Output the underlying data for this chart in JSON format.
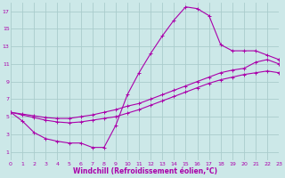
{
  "xlabel": "Windchill (Refroidissement éolien,°C)",
  "bg_color": "#cce8e8",
  "grid_color": "#aacccc",
  "line_color": "#aa00aa",
  "xlim": [
    0,
    23
  ],
  "ylim": [
    0,
    18
  ],
  "xticks": [
    0,
    1,
    2,
    3,
    4,
    5,
    6,
    7,
    8,
    9,
    10,
    11,
    12,
    13,
    14,
    15,
    16,
    17,
    18,
    19,
    20,
    21,
    22,
    23
  ],
  "yticks": [
    1,
    3,
    5,
    7,
    9,
    11,
    13,
    15,
    17
  ],
  "curve1_x": [
    0,
    1,
    2,
    3,
    4,
    5,
    6,
    7,
    8,
    9,
    10,
    11,
    12,
    13,
    14,
    15,
    16,
    17,
    18,
    19,
    20,
    21,
    22,
    23
  ],
  "curve1_y": [
    5.5,
    4.5,
    3.2,
    2.5,
    2.2,
    2.0,
    2.0,
    1.5,
    1.5,
    4.0,
    7.5,
    10.0,
    12.2,
    14.2,
    16.0,
    17.5,
    17.3,
    16.5,
    13.2,
    12.5,
    12.5,
    12.5,
    12.0,
    11.5
  ],
  "curve2_x": [
    0,
    1,
    2,
    3,
    4,
    5,
    6,
    7,
    8,
    9,
    10,
    11,
    12,
    13,
    14,
    15,
    16,
    17,
    18,
    19,
    20,
    21,
    22,
    23
  ],
  "curve2_y": [
    5.5,
    5.3,
    5.1,
    4.9,
    4.8,
    4.8,
    5.0,
    5.2,
    5.5,
    5.8,
    6.2,
    6.5,
    7.0,
    7.5,
    8.0,
    8.5,
    9.0,
    9.5,
    10.0,
    10.3,
    10.5,
    11.2,
    11.5,
    11.0
  ],
  "curve3_x": [
    0,
    1,
    2,
    3,
    4,
    5,
    6,
    7,
    8,
    9,
    10,
    11,
    12,
    13,
    14,
    15,
    16,
    17,
    18,
    19,
    20,
    21,
    22,
    23
  ],
  "curve3_y": [
    5.5,
    5.2,
    4.9,
    4.6,
    4.4,
    4.3,
    4.4,
    4.6,
    4.8,
    5.0,
    5.4,
    5.8,
    6.3,
    6.8,
    7.3,
    7.8,
    8.3,
    8.8,
    9.2,
    9.5,
    9.8,
    10.0,
    10.2,
    10.0
  ]
}
